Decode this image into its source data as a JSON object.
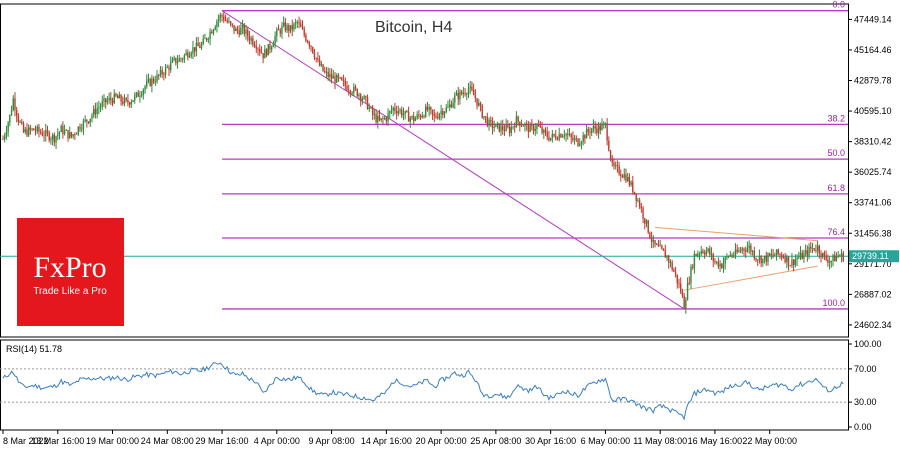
{
  "chart_data": [
    {
      "type": "candlestick",
      "title": "Bitcoin, H4",
      "ylim": [
        23700,
        48600
      ],
      "y_ticks": [
        "47449.14",
        "45164.46",
        "42879.78",
        "40595.10",
        "38310.42",
        "36025.74",
        "33741.06",
        "31456.38",
        "29171.70",
        "26887.02",
        "24602.34"
      ],
      "y_tick_values": [
        47449.14,
        45164.46,
        42879.78,
        40595.1,
        38310.42,
        36025.74,
        33741.06,
        31456.38,
        29171.7,
        26887.02,
        24602.34
      ],
      "x_ticks": [
        "8 Mar 2022",
        "13 Mar 16:00",
        "19 Mar 00:00",
        "24 Mar 08:00",
        "29 Mar 16:00",
        "4 Apr 00:00",
        "9 Apr 08:00",
        "14 Apr 16:00",
        "20 Apr 00:00",
        "25 Apr 08:00",
        "30 Apr 16:00",
        "6 May 00:00",
        "11 May 08:00",
        "16 May 16:00",
        "22 May 00:00"
      ],
      "x_tick_values": [
        0,
        32,
        64,
        96,
        128,
        160,
        192,
        224,
        256,
        288,
        320,
        352,
        384,
        416,
        448
      ],
      "x_range": [
        0,
        492
      ],
      "current_price": "29739.11",
      "current_price_value": 29739.11,
      "fibonacci": {
        "levels": [
          "0.0",
          "38.2",
          "50.0",
          "61.8",
          "76.4",
          "100.0"
        ],
        "prices": [
          48100,
          39600,
          37000,
          34400,
          31100,
          25800
        ],
        "start_x": 128
      },
      "close_path": [
        [
          0,
          38500
        ],
        [
          4,
          40200
        ],
        [
          6,
          41500
        ],
        [
          9,
          40000
        ],
        [
          12,
          39000
        ],
        [
          18,
          39200
        ],
        [
          24,
          38900
        ],
        [
          30,
          38600
        ],
        [
          34,
          39200
        ],
        [
          40,
          38700
        ],
        [
          45,
          39500
        ],
        [
          50,
          40000
        ],
        [
          55,
          40800
        ],
        [
          60,
          41300
        ],
        [
          66,
          41600
        ],
        [
          72,
          41200
        ],
        [
          78,
          41700
        ],
        [
          84,
          42600
        ],
        [
          90,
          43100
        ],
        [
          96,
          43800
        ],
        [
          100,
          44300
        ],
        [
          104,
          44500
        ],
        [
          110,
          45200
        ],
        [
          116,
          45500
        ],
        [
          122,
          46700
        ],
        [
          126,
          47600
        ],
        [
          128,
          47700
        ],
        [
          132,
          47100
        ],
        [
          136,
          46600
        ],
        [
          140,
          46700
        ],
        [
          144,
          46100
        ],
        [
          148,
          45600
        ],
        [
          152,
          44800
        ],
        [
          156,
          45400
        ],
        [
          160,
          46400
        ],
        [
          164,
          46900
        ],
        [
          168,
          46700
        ],
        [
          172,
          47200
        ],
        [
          176,
          46300
        ],
        [
          180,
          45500
        ],
        [
          184,
          44200
        ],
        [
          188,
          43400
        ],
        [
          192,
          43100
        ],
        [
          196,
          42900
        ],
        [
          200,
          42500
        ],
        [
          204,
          42200
        ],
        [
          208,
          41900
        ],
        [
          212,
          41300
        ],
        [
          216,
          40300
        ],
        [
          220,
          39800
        ],
        [
          224,
          40100
        ],
        [
          228,
          40800
        ],
        [
          232,
          40600
        ],
        [
          236,
          40200
        ],
        [
          240,
          40000
        ],
        [
          244,
          40300
        ],
        [
          248,
          40700
        ],
        [
          252,
          40100
        ],
        [
          256,
          40600
        ],
        [
          260,
          40800
        ],
        [
          264,
          41600
        ],
        [
          268,
          41900
        ],
        [
          272,
          42300
        ],
        [
          276,
          41600
        ],
        [
          280,
          40400
        ],
        [
          284,
          39600
        ],
        [
          288,
          39400
        ],
        [
          292,
          39300
        ],
        [
          296,
          39200
        ],
        [
          300,
          39900
        ],
        [
          304,
          39600
        ],
        [
          308,
          39200
        ],
        [
          312,
          39500
        ],
        [
          316,
          38900
        ],
        [
          320,
          38600
        ],
        [
          324,
          38800
        ],
        [
          328,
          39000
        ],
        [
          332,
          38500
        ],
        [
          336,
          38300
        ],
        [
          340,
          38800
        ],
        [
          344,
          39300
        ],
        [
          348,
          39300
        ],
        [
          352,
          39500
        ],
        [
          356,
          36400
        ],
        [
          360,
          36100
        ],
        [
          364,
          35700
        ],
        [
          368,
          34800
        ],
        [
          372,
          33600
        ],
        [
          376,
          32100
        ],
        [
          380,
          30600
        ],
        [
          384,
          30200
        ],
        [
          388,
          29700
        ],
        [
          392,
          28600
        ],
        [
          396,
          27200
        ],
        [
          398,
          26100
        ],
        [
          400,
          27500
        ],
        [
          404,
          29800
        ],
        [
          408,
          30200
        ],
        [
          412,
          30100
        ],
        [
          416,
          29300
        ],
        [
          420,
          29100
        ],
        [
          424,
          29800
        ],
        [
          428,
          29900
        ],
        [
          432,
          30300
        ],
        [
          436,
          30400
        ],
        [
          440,
          29700
        ],
        [
          444,
          29500
        ],
        [
          448,
          29700
        ],
        [
          452,
          29900
        ],
        [
          456,
          29800
        ],
        [
          460,
          29200
        ],
        [
          464,
          29600
        ],
        [
          468,
          29800
        ],
        [
          472,
          30300
        ],
        [
          476,
          30400
        ],
        [
          480,
          29600
        ],
        [
          484,
          29400
        ],
        [
          488,
          29800
        ],
        [
          490,
          29739
        ]
      ]
    },
    {
      "type": "line",
      "title": "RSI(14) 51.78",
      "ylim": [
        0,
        100
      ],
      "y_ticks": [
        "100.00",
        "70.00",
        "30.00",
        "0.00"
      ],
      "y_tick_values": [
        100,
        70,
        30,
        0
      ],
      "gridlines": [
        70,
        30
      ],
      "series": [
        {
          "values_path": [
            [
              0,
              58
            ],
            [
              4,
              65
            ],
            [
              6,
              66
            ],
            [
              9,
              55
            ],
            [
              12,
              48
            ],
            [
              18,
              50
            ],
            [
              24,
              47
            ],
            [
              30,
              49
            ],
            [
              34,
              55
            ],
            [
              40,
              50
            ],
            [
              45,
              57
            ],
            [
              50,
              58
            ],
            [
              55,
              59
            ],
            [
              60,
              58
            ],
            [
              66,
              60
            ],
            [
              72,
              57
            ],
            [
              78,
              61
            ],
            [
              84,
              63
            ],
            [
              90,
              62
            ],
            [
              96,
              66
            ],
            [
              100,
              67
            ],
            [
              104,
              64
            ],
            [
              110,
              68
            ],
            [
              116,
              68
            ],
            [
              122,
              74
            ],
            [
              126,
              78
            ],
            [
              128,
              76
            ],
            [
              132,
              68
            ],
            [
              136,
              62
            ],
            [
              140,
              64
            ],
            [
              144,
              58
            ],
            [
              148,
              54
            ],
            [
              152,
              40
            ],
            [
              156,
              50
            ],
            [
              160,
              60
            ],
            [
              164,
              58
            ],
            [
              168,
              57
            ],
            [
              172,
              60
            ],
            [
              176,
              55
            ],
            [
              180,
              45
            ],
            [
              184,
              40
            ],
            [
              188,
              38
            ],
            [
              192,
              42
            ],
            [
              196,
              40
            ],
            [
              200,
              39
            ],
            [
              204,
              38
            ],
            [
              208,
              36
            ],
            [
              212,
              35
            ],
            [
              216,
              32
            ],
            [
              220,
              37
            ],
            [
              224,
              42
            ],
            [
              228,
              55
            ],
            [
              232,
              55
            ],
            [
              236,
              50
            ],
            [
              240,
              49
            ],
            [
              244,
              53
            ],
            [
              248,
              56
            ],
            [
              252,
              48
            ],
            [
              256,
              56
            ],
            [
              260,
              60
            ],
            [
              264,
              65
            ],
            [
              268,
              62
            ],
            [
              272,
              66
            ],
            [
              276,
              57
            ],
            [
              280,
              40
            ],
            [
              284,
              38
            ],
            [
              288,
              40
            ],
            [
              292,
              37
            ],
            [
              296,
              36
            ],
            [
              300,
              50
            ],
            [
              304,
              46
            ],
            [
              308,
              44
            ],
            [
              312,
              49
            ],
            [
              316,
              39
            ],
            [
              320,
              35
            ],
            [
              324,
              39
            ],
            [
              328,
              44
            ],
            [
              332,
              40
            ],
            [
              336,
              38
            ],
            [
              340,
              46
            ],
            [
              344,
              52
            ],
            [
              348,
              56
            ],
            [
              352,
              58
            ],
            [
              356,
              32
            ],
            [
              360,
              33
            ],
            [
              364,
              34
            ],
            [
              368,
              30
            ],
            [
              372,
              26
            ],
            [
              376,
              22
            ],
            [
              380,
              20
            ],
            [
              384,
              25
            ],
            [
              388,
              23
            ],
            [
              392,
              18
            ],
            [
              396,
              14
            ],
            [
              398,
              12
            ],
            [
              400,
              25
            ],
            [
              404,
              40
            ],
            [
              408,
              44
            ],
            [
              412,
              45
            ],
            [
              416,
              41
            ],
            [
              420,
              42
            ],
            [
              424,
              48
            ],
            [
              428,
              50
            ],
            [
              432,
              53
            ],
            [
              436,
              53
            ],
            [
              440,
              45
            ],
            [
              444,
              46
            ],
            [
              448,
              49
            ],
            [
              452,
              51
            ],
            [
              456,
              51
            ],
            [
              460,
              45
            ],
            [
              464,
              50
            ],
            [
              468,
              52
            ],
            [
              472,
              56
            ],
            [
              476,
              57
            ],
            [
              480,
              46
            ],
            [
              484,
              44
            ],
            [
              488,
              50
            ],
            [
              490,
              51.78
            ]
          ]
        }
      ]
    }
  ],
  "logo": {
    "brand": "FxPro",
    "tagline": "Trade Like a Pro",
    "background": "#e3171c",
    "text_color": "#ffffff"
  },
  "colors": {
    "up": "#2e8b3a",
    "down": "#c0392b",
    "fib": "#b43cc0",
    "rsi": "#3a7fc4",
    "current_price_bg": "#26a69a",
    "current_line": "#26a69a",
    "triangle": "#e8a070"
  }
}
